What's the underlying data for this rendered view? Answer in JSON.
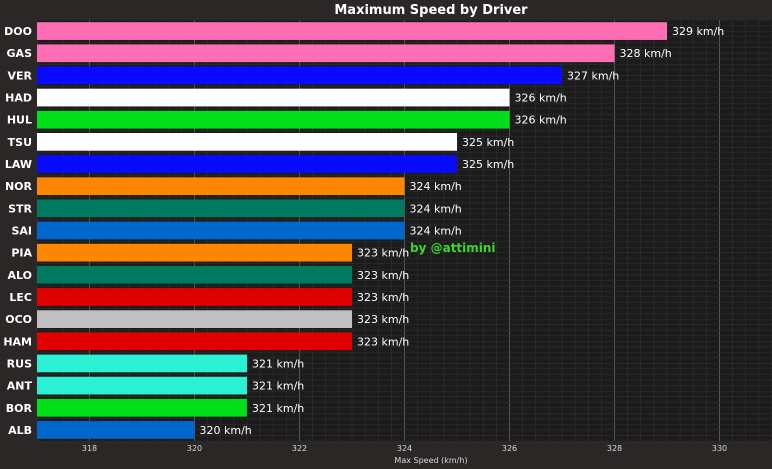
{
  "chart_data": {
    "type": "bar",
    "orientation": "horizontal",
    "title": "Maximum Speed by Driver",
    "xlabel": "Max Speed (km/h)",
    "ylabel": "",
    "xlim": [
      317,
      331
    ],
    "xticks": [
      318,
      320,
      322,
      324,
      326,
      328,
      330
    ],
    "grid": true,
    "value_suffix": " km/h",
    "categories": [
      "DOO",
      "GAS",
      "VER",
      "HAD",
      "HUL",
      "TSU",
      "LAW",
      "NOR",
      "STR",
      "SAI",
      "PIA",
      "ALO",
      "LEC",
      "OCO",
      "HAM",
      "RUS",
      "ANT",
      "BOR",
      "ALB"
    ],
    "values": [
      329,
      328,
      327,
      326,
      326,
      325,
      325,
      324,
      324,
      324,
      323,
      323,
      323,
      323,
      323,
      321,
      321,
      321,
      320
    ],
    "colors": [
      "#ff6eb4",
      "#ff6eb4",
      "#0a0aff",
      "#ffffff",
      "#00e01a",
      "#ffffff",
      "#0a0aff",
      "#ff8700",
      "#007a5e",
      "#0067cc",
      "#ff8700",
      "#007a5e",
      "#e00000",
      "#c0c0c0",
      "#e00000",
      "#2af0d4",
      "#2af0d4",
      "#00e01a",
      "#0067cc"
    ],
    "watermark": "by @attimini"
  }
}
